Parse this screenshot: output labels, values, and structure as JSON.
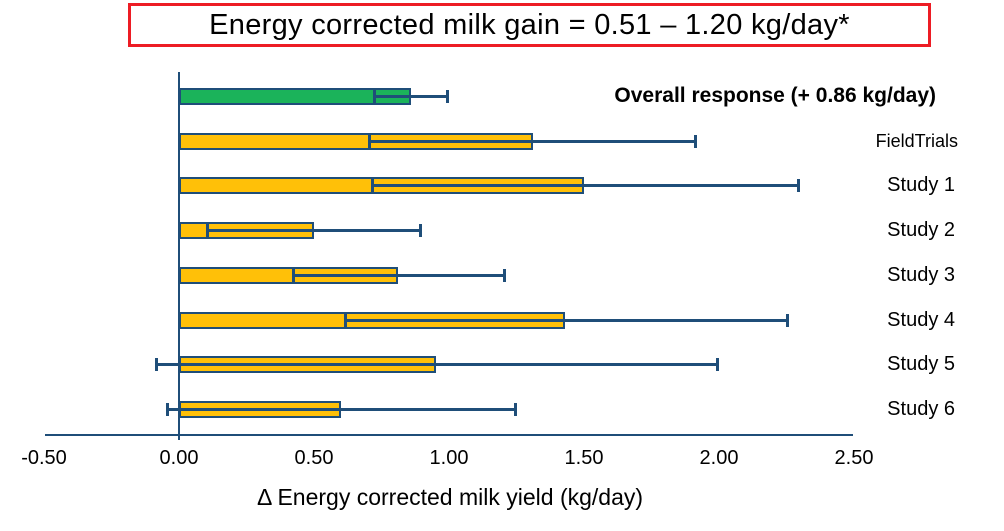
{
  "title": {
    "text": "Energy corrected milk gain = 0.51 – 1.20 kg/day*"
  },
  "colors": {
    "green_bar": "#1bb35a",
    "yellow_bar": "#ffc008",
    "axis_navy": "#1f4e79",
    "title_border_red": "#ed1c24"
  },
  "chart_data": {
    "type": "bar",
    "orientation": "horizontal",
    "title": "Energy corrected milk gain = 0.51 – 1.20 kg/day*",
    "xlabel": "Δ Energy corrected milk yield (kg/day)",
    "xlim": [
      -0.5,
      2.5
    ],
    "grid": false,
    "legend": "none",
    "x_ticks": [
      {
        "value": -0.5,
        "label": "-0.50"
      },
      {
        "value": 0.0,
        "label": "0.00"
      },
      {
        "value": 0.5,
        "label": "0.50"
      },
      {
        "value": 1.0,
        "label": "1.00"
      },
      {
        "value": 1.5,
        "label": "1.50"
      },
      {
        "value": 2.0,
        "label": "2.00"
      },
      {
        "value": 2.5,
        "label": "2.50"
      }
    ],
    "rows": [
      {
        "label": "Overall response (+ 0.86 kg/day)",
        "value": 0.86,
        "ci_low": 0.72,
        "ci_high": 1.0,
        "color": "#1bb35a",
        "kind": "overall"
      },
      {
        "label": "FieldTrials",
        "value": 1.31,
        "ci_low": 0.7,
        "ci_high": 1.92,
        "color": "#ffc008",
        "kind": "fieldtrials"
      },
      {
        "label": "Study 1",
        "value": 1.5,
        "ci_low": 0.71,
        "ci_high": 2.3,
        "color": "#ffc008",
        "kind": "study"
      },
      {
        "label": "Study 2",
        "value": 0.5,
        "ci_low": 0.1,
        "ci_high": 0.9,
        "color": "#ffc008",
        "kind": "study"
      },
      {
        "label": "Study 3",
        "value": 0.81,
        "ci_low": 0.42,
        "ci_high": 1.21,
        "color": "#ffc008",
        "kind": "study"
      },
      {
        "label": "Study 4",
        "value": 1.43,
        "ci_low": 0.61,
        "ci_high": 2.26,
        "color": "#ffc008",
        "kind": "study"
      },
      {
        "label": "Study 5",
        "value": 0.95,
        "ci_low": -0.09,
        "ci_high": 2.0,
        "color": "#ffc008",
        "kind": "study"
      },
      {
        "label": "Study 6",
        "value": 0.6,
        "ci_low": -0.05,
        "ci_high": 1.25,
        "color": "#ffc008",
        "kind": "study"
      }
    ]
  }
}
